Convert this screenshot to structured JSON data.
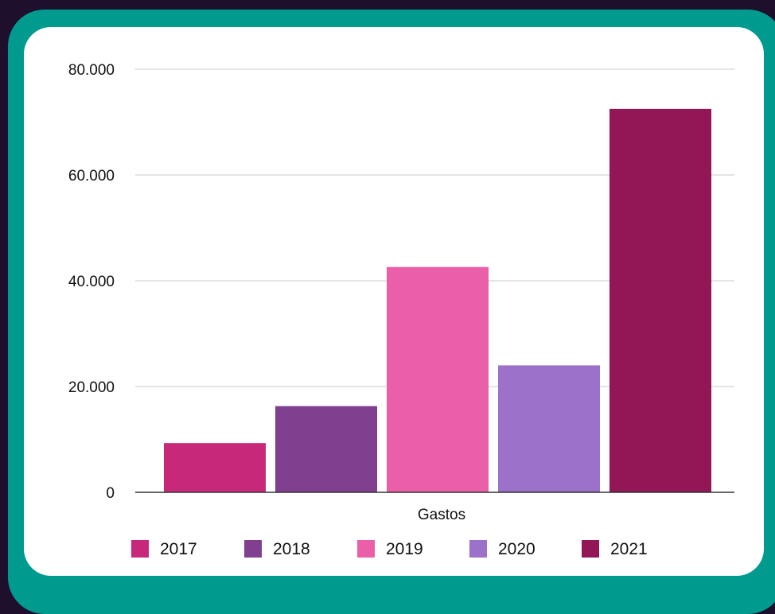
{
  "chart_data": {
    "type": "bar",
    "categories": [
      "Gastos"
    ],
    "xlabel": "Gastos",
    "ylabel": "",
    "ylim": [
      0,
      80000
    ],
    "y_ticks": [
      0,
      20000,
      40000,
      60000,
      80000
    ],
    "y_tick_labels": [
      "0",
      "20.000",
      "40.000",
      "60.000",
      "80.000"
    ],
    "grid": true,
    "legend_position": "bottom",
    "series": [
      {
        "name": "2017",
        "values": [
          9300
        ],
        "color": "#c8287a"
      },
      {
        "name": "2018",
        "values": [
          16300
        ],
        "color": "#80408f"
      },
      {
        "name": "2019",
        "values": [
          42600
        ],
        "color": "#ea5fa8"
      },
      {
        "name": "2020",
        "values": [
          24000
        ],
        "color": "#9b71c9"
      },
      {
        "name": "2021",
        "values": [
          72500
        ],
        "color": "#931756"
      }
    ]
  },
  "colors": {
    "page_background": "#1e0f2d",
    "frame": "#009a8e",
    "card": "#ffffff",
    "gridline": "#c8c8c8"
  }
}
